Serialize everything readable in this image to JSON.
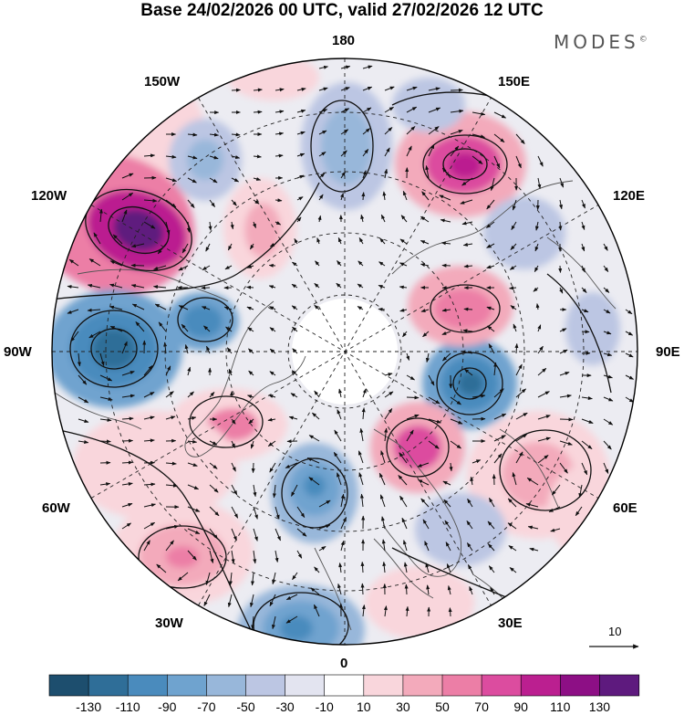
{
  "title": "Base 24/02/2026 00 UTC, valid 27/02/2026 12 UTC",
  "brand": "MODES",
  "brand_mark": "©",
  "longitude_labels": {
    "lon_180": "180",
    "lon_150E": "150E",
    "lon_120E": "120E",
    "lon_90E": "90E",
    "lon_60E": "60E",
    "lon_30E": "30E",
    "lon_0": "0",
    "lon_30W": "30W",
    "lon_60W": "60W",
    "lon_90W": "90W",
    "lon_120W": "120W",
    "lon_150W": "150W"
  },
  "reference_vector_label": "10",
  "colorbar": {
    "labels": [
      "-130",
      "-110",
      "-90",
      "-70",
      "-50",
      "-30",
      "-10",
      "10",
      "30",
      "50",
      "70",
      "90",
      "110",
      "130"
    ],
    "colors": [
      "#1d4e6e",
      "#2f6e98",
      "#4a8bbd",
      "#6fa3cf",
      "#98b7da",
      "#bcc6e3",
      "#e3e4f0",
      "#ffffff",
      "#f9d6dc",
      "#f3aabb",
      "#ec7ea6",
      "#dc4c9f",
      "#bb1f90",
      "#8d0f85",
      "#5e1a7e"
    ]
  },
  "colors": {
    "grid": "#222222",
    "coast": "#555555",
    "arrow": "#111111"
  }
}
